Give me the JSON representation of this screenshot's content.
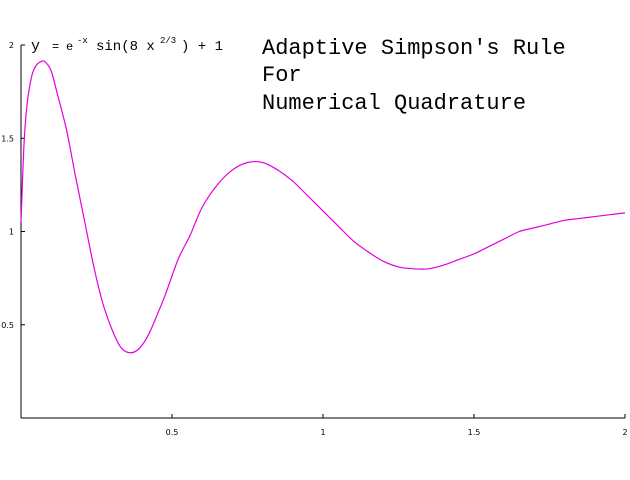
{
  "chart_data": {
    "type": "line",
    "title_lines": [
      "Adaptive Simpson's Rule",
      "For",
      "Numerical Quadrature"
    ],
    "formula": {
      "lhs": "y",
      "eq": "=",
      "base": "e",
      "exponent": "-x",
      "func": "sin(8 x",
      "power": "2/3",
      "tail": ") + 1"
    },
    "xlim": [
      0,
      2
    ],
    "ylim": [
      0,
      2
    ],
    "x_ticks": [
      {
        "value": 0.5,
        "label": "0.5"
      },
      {
        "value": 1,
        "label": "1"
      },
      {
        "value": 1.5,
        "label": "1.5"
      },
      {
        "value": 2,
        "label": "2"
      }
    ],
    "y_ticks": [
      {
        "value": 0.5,
        "label": "0.5"
      },
      {
        "value": 1,
        "label": "1"
      },
      {
        "value": 1.5,
        "label": "1.5"
      },
      {
        "value": 2,
        "label": "2"
      }
    ],
    "grid": false,
    "series": [
      {
        "color": "#e000e0",
        "x": [
          0,
          0.01,
          0.02,
          0.035,
          0.05,
          0.065,
          0.08,
          0.1,
          0.12,
          0.15,
          0.18,
          0.21,
          0.24,
          0.27,
          0.3,
          0.33,
          0.36,
          0.39,
          0.42,
          0.45,
          0.48,
          0.52,
          0.56,
          0.6,
          0.65,
          0.7,
          0.75,
          0.8,
          0.85,
          0.9,
          0.95,
          1.0,
          1.05,
          1.1,
          1.15,
          1.2,
          1.25,
          1.3,
          1.35,
          1.4,
          1.45,
          1.5,
          1.55,
          1.6,
          1.65,
          1.7,
          1.75,
          1.8,
          1.85,
          1.9,
          1.95,
          2.0
        ],
        "y": [
          1.05,
          1.47,
          1.68,
          1.83,
          1.89,
          1.91,
          1.91,
          1.86,
          1.74,
          1.55,
          1.3,
          1.06,
          0.82,
          0.62,
          0.48,
          0.38,
          0.35,
          0.37,
          0.44,
          0.55,
          0.67,
          0.85,
          0.98,
          1.13,
          1.25,
          1.33,
          1.37,
          1.37,
          1.33,
          1.27,
          1.19,
          1.11,
          1.03,
          0.95,
          0.89,
          0.84,
          0.81,
          0.8,
          0.8,
          0.82,
          0.85,
          0.88,
          0.92,
          0.96,
          1.0,
          1.02,
          1.04,
          1.06,
          1.07,
          1.08,
          1.09,
          1.1
        ]
      }
    ]
  }
}
